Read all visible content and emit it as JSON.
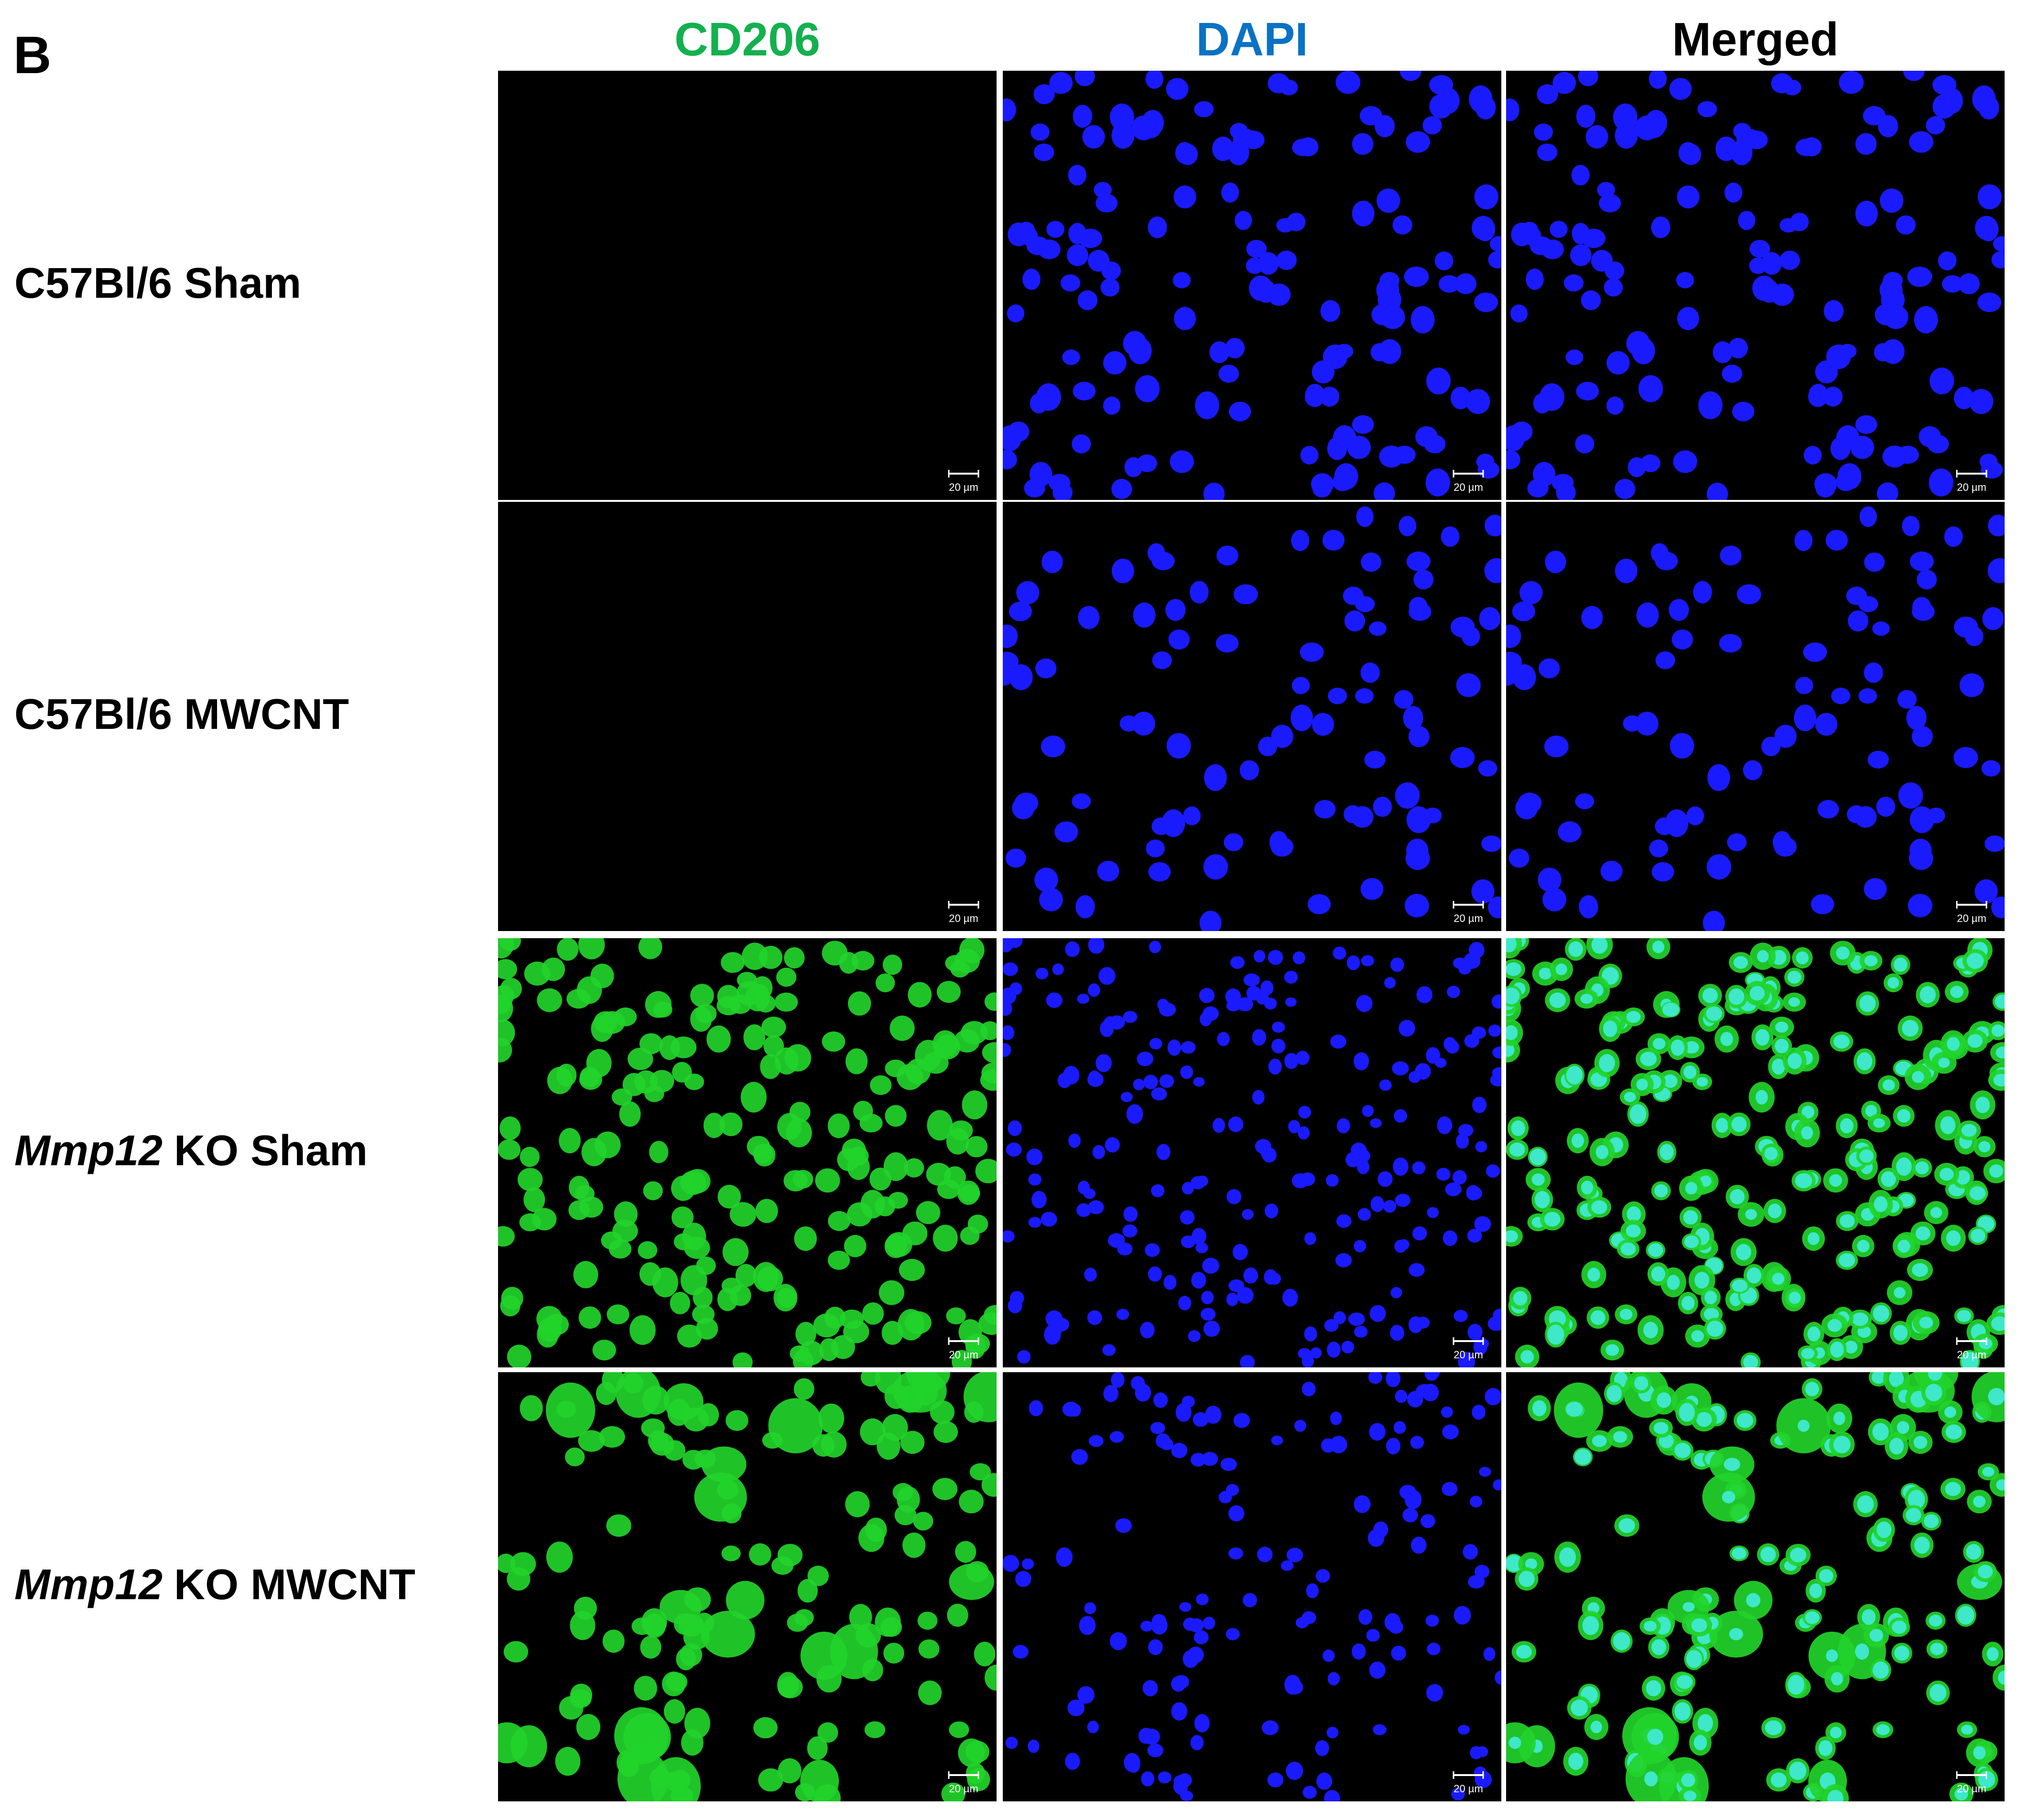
{
  "panel_label": "B",
  "columns": [
    "CD206",
    "DAPI",
    "Merged"
  ],
  "rows": [
    {
      "label": "C57Bl/6 Sham"
    },
    {
      "label": "C57Bl/6 MWCNT"
    },
    {
      "gene": "Mmp12",
      "label": "KO Sham"
    },
    {
      "gene": "Mmp12",
      "label": "KO MWCNT"
    }
  ],
  "scale_bar_label": "20 µm"
}
